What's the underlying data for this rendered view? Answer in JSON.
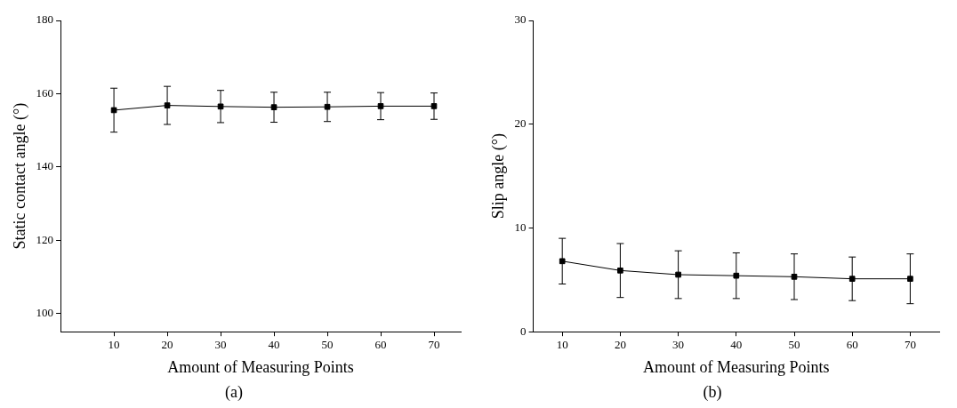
{
  "chart_data": [
    {
      "type": "line",
      "title": "(a)",
      "x_label": "Amount of Measuring Points",
      "y_label": "Static contact angle (°)",
      "x": [
        10,
        20,
        30,
        40,
        50,
        60,
        70
      ],
      "series": [
        {
          "color": "#000000",
          "marker": "square",
          "line_style": "solid",
          "values": [
            155.5,
            156.8,
            156.5,
            156.3,
            156.4,
            156.6,
            156.6
          ],
          "errors": [
            6.0,
            5.2,
            4.4,
            4.1,
            4.0,
            3.7,
            3.6
          ]
        }
      ],
      "xlim": [
        0,
        75
      ],
      "xticks": [
        10,
        20,
        30,
        40,
        50,
        60,
        70
      ],
      "ylim": [
        95,
        180
      ],
      "yticks": [
        100,
        120,
        140,
        160,
        180
      ],
      "grid": false
    },
    {
      "type": "line",
      "title": "(b)",
      "x_label": "Amount of Measuring Points",
      "y_label": "Slip angle (°)",
      "x": [
        10,
        20,
        30,
        40,
        50,
        60,
        70
      ],
      "series": [
        {
          "color": "#000000",
          "marker": "square",
          "line_style": "solid",
          "values": [
            6.8,
            5.9,
            5.5,
            5.4,
            5.3,
            5.1,
            5.1
          ],
          "errors": [
            2.2,
            2.6,
            2.3,
            2.2,
            2.2,
            2.1,
            2.4
          ]
        }
      ],
      "xlim": [
        5,
        75
      ],
      "xticks": [
        10,
        20,
        30,
        40,
        50,
        60,
        70
      ],
      "ylim": [
        0,
        30
      ],
      "yticks": [
        0,
        10,
        20,
        30
      ],
      "grid": false
    }
  ]
}
